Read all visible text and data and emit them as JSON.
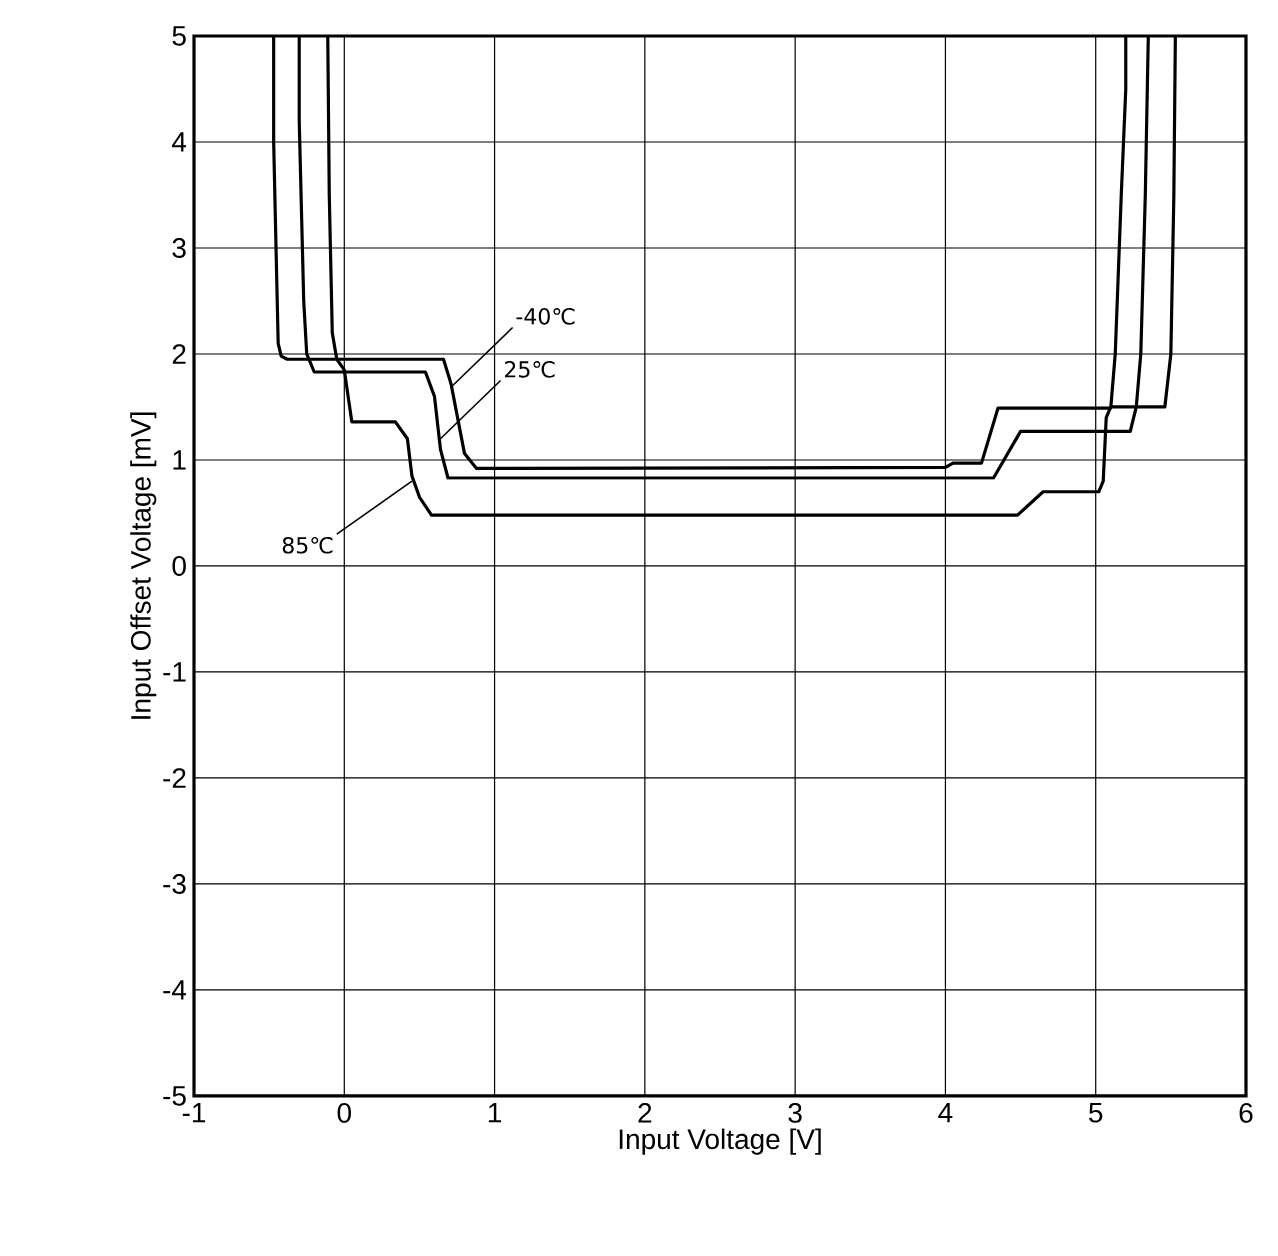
{
  "chart_data": {
    "type": "line",
    "xlabel": "Input Voltage [V]",
    "ylabel": "Input Offset Voltage [mV]",
    "xlim": [
      -1,
      6
    ],
    "ylim": [
      -5,
      5
    ],
    "xticks": [
      -1,
      0,
      1,
      2,
      3,
      4,
      5,
      6
    ],
    "yticks": [
      -5,
      -4,
      -3,
      -2,
      -1,
      0,
      1,
      2,
      3,
      4,
      5
    ],
    "grid": true,
    "marker": "none",
    "line_style": "solid",
    "series": [
      {
        "color": "#000000",
        "x": [
          -0.47,
          -0.47,
          -0.44,
          -0.42,
          -0.38,
          0.66,
          0.71,
          0.8,
          0.88,
          4.0,
          4.05,
          4.24,
          4.35,
          5.08,
          5.1,
          5.13,
          5.17,
          5.2,
          5.2
        ],
        "values": [
          5,
          4.0,
          2.1,
          1.98,
          1.95,
          1.95,
          1.72,
          1.06,
          0.92,
          0.93,
          0.97,
          0.97,
          1.49,
          1.49,
          1.49,
          2.0,
          3.5,
          4.5,
          5
        ]
      },
      {
        "color": "#000000",
        "x": [
          -0.3,
          -0.3,
          -0.27,
          -0.25,
          -0.2,
          0.54,
          0.6,
          0.64,
          0.69,
          4.32,
          4.5,
          5.23,
          5.27,
          5.3,
          5.33,
          5.35
        ],
        "values": [
          5,
          4.2,
          2.5,
          2.0,
          1.83,
          1.83,
          1.6,
          1.1,
          0.83,
          0.83,
          1.27,
          1.27,
          1.5,
          2.0,
          3.5,
          5
        ]
      },
      {
        "color": "#000000",
        "x": [
          -0.11,
          -0.1,
          -0.08,
          -0.05,
          0.0,
          0.05,
          0.34,
          0.42,
          0.45,
          0.5,
          0.58,
          4.48,
          4.65,
          5.02,
          5.05,
          5.07,
          5.1,
          5.46,
          5.5,
          5.52,
          5.53
        ],
        "values": [
          5,
          3.5,
          2.2,
          1.95,
          1.85,
          1.36,
          1.36,
          1.2,
          0.85,
          0.65,
          0.48,
          0.48,
          0.7,
          0.7,
          0.8,
          1.4,
          1.5,
          1.5,
          2.0,
          3.5,
          5
        ]
      }
    ],
    "annotations": [
      {
        "text": "-40℃",
        "x": 0.72,
        "y": 1.7
      },
      {
        "text": "25℃",
        "x": 0.64,
        "y": 1.2
      },
      {
        "text": "85℃",
        "x": 0.45,
        "y": 0.8
      }
    ]
  }
}
